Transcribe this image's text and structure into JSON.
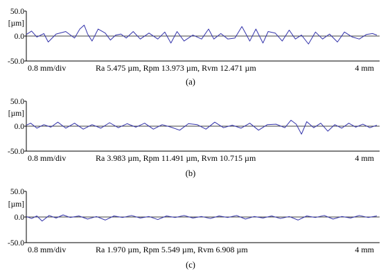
{
  "chart_data": [
    {
      "type": "line",
      "unit": "[µm]",
      "ylim": [
        -50,
        50
      ],
      "y_ticks": [
        "50.0",
        "0.0",
        "-50.0"
      ],
      "x_left_label": "0.8 mm/div",
      "x_right_label": "4 mm",
      "xlim": [
        0,
        4
      ],
      "stats": "Ra 5.475 µm, Rpm 13.973 µm, Rvm 12.471 µm",
      "caption": "(a)",
      "color": "#3333aa",
      "x": [
        0.0,
        0.06,
        0.12,
        0.2,
        0.25,
        0.34,
        0.45,
        0.55,
        0.61,
        0.66,
        0.7,
        0.75,
        0.82,
        0.9,
        0.96,
        1.02,
        1.08,
        1.14,
        1.22,
        1.3,
        1.4,
        1.5,
        1.58,
        1.65,
        1.72,
        1.8,
        1.9,
        2.0,
        2.08,
        2.14,
        2.22,
        2.3,
        2.38,
        2.46,
        2.55,
        2.62,
        2.7,
        2.76,
        2.84,
        2.92,
        3.0,
        3.07,
        3.14,
        3.22,
        3.3,
        3.38,
        3.46,
        3.55,
        3.63,
        3.72,
        3.8,
        3.88,
        3.95,
        4.0
      ],
      "y": [
        3,
        10,
        -2,
        5,
        -12,
        4,
        9,
        -4,
        14,
        22,
        4,
        -10,
        14,
        6,
        -8,
        2,
        4,
        -4,
        9,
        -6,
        6,
        -6,
        8,
        -14,
        9,
        -10,
        2,
        -6,
        14,
        -6,
        5,
        -6,
        -4,
        19,
        -10,
        14,
        -14,
        9,
        6,
        -10,
        12,
        -6,
        2,
        -16,
        8,
        -6,
        4,
        -12,
        8,
        -2,
        -6,
        3,
        5,
        2
      ]
    },
    {
      "type": "line",
      "unit": "[µm]",
      "ylim": [
        -50,
        50
      ],
      "y_ticks": [
        "50.0",
        "0.0",
        "-50.0"
      ],
      "x_left_label": "0.8 mm/div",
      "x_right_label": "4 mm",
      "xlim": [
        0,
        4
      ],
      "stats": "Ra 3.983 µm, Rpm 11.491 µm, Rvm 10.715 µm",
      "caption": "(b)",
      "color": "#3333aa",
      "x": [
        0.0,
        0.05,
        0.12,
        0.2,
        0.28,
        0.36,
        0.45,
        0.55,
        0.65,
        0.75,
        0.85,
        0.95,
        1.05,
        1.15,
        1.25,
        1.35,
        1.45,
        1.55,
        1.65,
        1.75,
        1.85,
        1.95,
        2.05,
        2.15,
        2.25,
        2.35,
        2.45,
        2.55,
        2.65,
        2.75,
        2.85,
        2.95,
        3.02,
        3.08,
        3.14,
        3.2,
        3.28,
        3.36,
        3.44,
        3.52,
        3.6,
        3.68,
        3.76,
        3.84,
        3.92,
        4.0
      ],
      "y": [
        2,
        6,
        -4,
        3,
        -2,
        8,
        -4,
        6,
        -6,
        3,
        -4,
        7,
        -3,
        5,
        -2,
        6,
        -6,
        3,
        -2,
        -8,
        5,
        3,
        -6,
        8,
        -3,
        2,
        -4,
        6,
        -8,
        3,
        4,
        -3,
        12,
        4,
        -16,
        9,
        -3,
        6,
        -10,
        3,
        -4,
        6,
        -2,
        4,
        -3,
        2
      ]
    },
    {
      "type": "line",
      "unit": "[µm]",
      "ylim": [
        -50,
        50
      ],
      "y_ticks": [
        "50.0",
        "0.0",
        "-50.0"
      ],
      "x_left_label": "0.8 mm/div",
      "x_right_label": "4 mm",
      "xlim": [
        0,
        4
      ],
      "stats": "Ra 1.970 µm, Rpm 5.549 µm, Rvm 6.908 µm",
      "caption": "(c)",
      "color": "#3333aa",
      "x": [
        0.0,
        0.06,
        0.12,
        0.18,
        0.26,
        0.34,
        0.42,
        0.5,
        0.6,
        0.7,
        0.8,
        0.9,
        1.0,
        1.1,
        1.2,
        1.3,
        1.4,
        1.5,
        1.6,
        1.7,
        1.8,
        1.9,
        2.0,
        2.1,
        2.2,
        2.3,
        2.4,
        2.5,
        2.6,
        2.7,
        2.8,
        2.9,
        3.0,
        3.1,
        3.2,
        3.3,
        3.4,
        3.5,
        3.6,
        3.7,
        3.8,
        3.9,
        4.0
      ],
      "y": [
        1,
        -3,
        2,
        -8,
        3,
        -2,
        4,
        -1,
        2,
        -4,
        1,
        -6,
        2,
        -1,
        3,
        -2,
        1,
        -5,
        2,
        -1,
        3,
        -2,
        1,
        -3,
        2,
        -1,
        3,
        -4,
        1,
        -2,
        2,
        -3,
        1,
        -6,
        2,
        -1,
        3,
        -4,
        1,
        -2,
        3,
        -1,
        2
      ]
    }
  ]
}
